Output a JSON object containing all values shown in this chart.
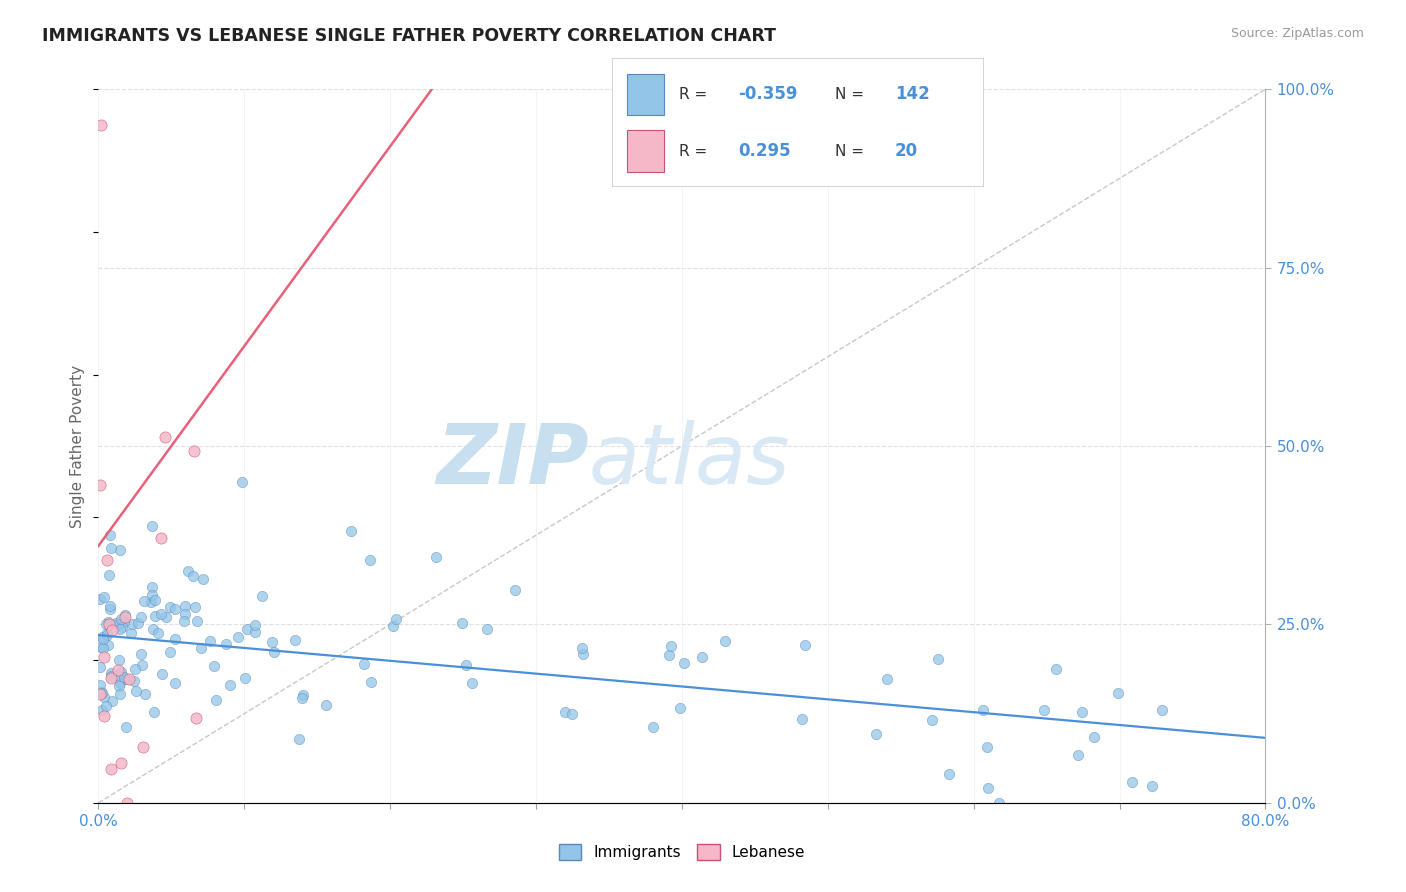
{
  "title": "IMMIGRANTS VS LEBANESE SINGLE FATHER POVERTY CORRELATION CHART",
  "source_text": "Source: ZipAtlas.com",
  "ylabel": "Single Father Poverty",
  "blue_color": "#92c5e8",
  "pink_color": "#f4b8c8",
  "blue_line_color": "#4a90d9",
  "pink_line_color": "#e8607a",
  "text_color": "#4a90d9",
  "watermark_zip_color": "#c8dff0",
  "watermark_atlas_color": "#d8e8f5",
  "R1": "-0.359",
  "N1": "142",
  "R2": "0.295",
  "N2": "20",
  "xlim": [
    0.0,
    0.8
  ],
  "ylim": [
    0.0,
    1.0
  ],
  "blue_intercept": 0.235,
  "blue_slope": -0.18,
  "pink_intercept": 0.36,
  "pink_slope": 2.8
}
